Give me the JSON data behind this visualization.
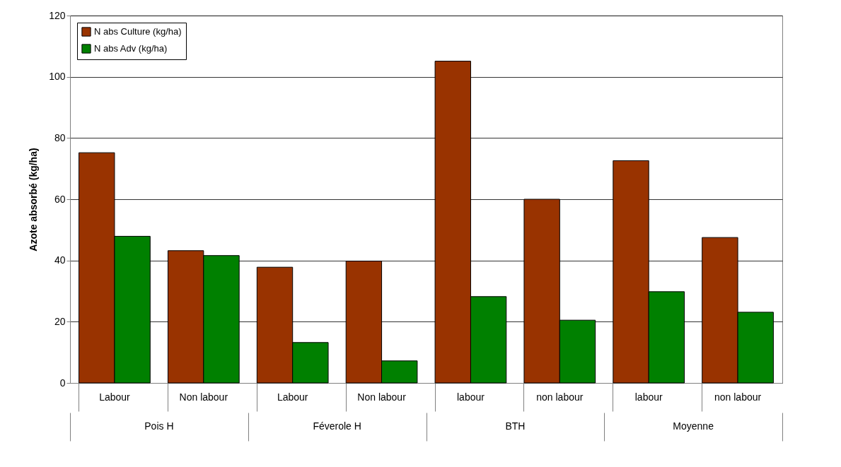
{
  "chart_data": {
    "type": "bar",
    "ylabel": "Azote absorbé (kg/ha)",
    "categories": [
      "Labour",
      "Non labour",
      "Labour",
      "Non labour",
      "labour",
      "non labour",
      "labour",
      "non labour"
    ],
    "annotations": [
      "Pois H",
      "Féverole H",
      "BTH",
      "Moyenne"
    ],
    "series": [
      {
        "name": "N abs Culture (kg/ha)",
        "color": "#993300",
        "values": [
          75.2,
          43.2,
          37.8,
          39.8,
          105.1,
          60.0,
          72.6,
          47.5
        ]
      },
      {
        "name": "N abs Adv (kg/ha)",
        "color": "#008000",
        "values": [
          47.9,
          41.6,
          13.2,
          7.2,
          28.2,
          20.5,
          29.8,
          23.1
        ]
      }
    ],
    "ylim": [
      0,
      120
    ],
    "yticks": [
      0,
      20,
      40,
      60,
      80,
      100,
      120
    ],
    "grid": "y",
    "legend": "top left"
  }
}
